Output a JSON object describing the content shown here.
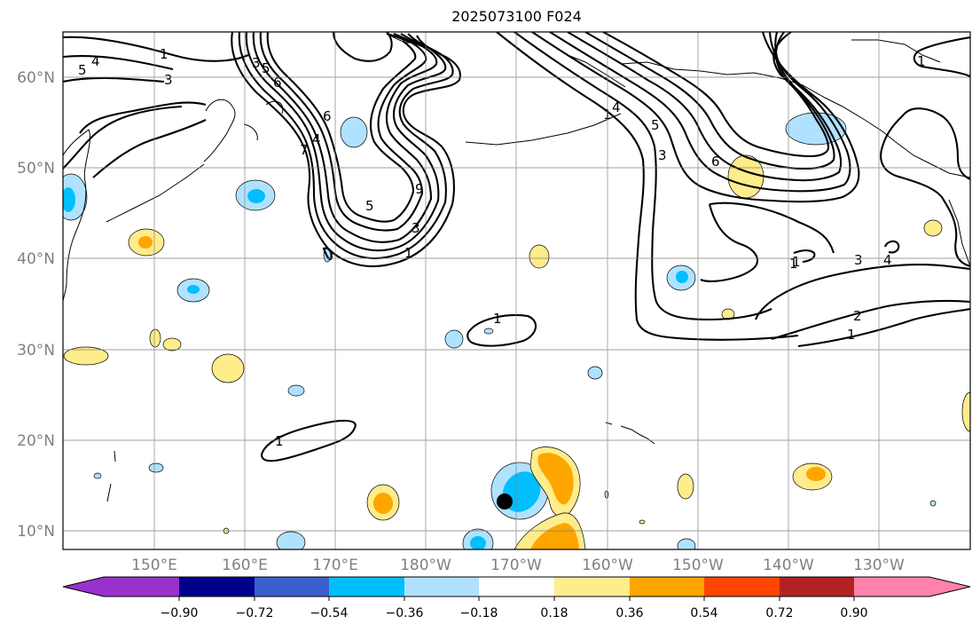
{
  "title": "2025073100 F024",
  "lat_labels": [
    "60°N",
    "50°N",
    "40°N",
    "30°N",
    "20°N",
    "10°N"
  ],
  "lon_labels": [
    "150°E",
    "160°E",
    "170°E",
    "180°W",
    "170°W",
    "160°W",
    "150°W",
    "140°W",
    "130°W"
  ],
  "colorbar": {
    "ticks": [
      "−0.90",
      "−0.72",
      "−0.54",
      "−0.36",
      "−0.18",
      "0.18",
      "0.36",
      "0.54",
      "0.72",
      "0.90"
    ],
    "colors": [
      "#9932cc",
      "#00008b",
      "#3a5fcd",
      "#00bfff",
      "#b0e2ff",
      "#ffffff",
      "#ffec8b",
      "#ffa500",
      "#ff4500",
      "#b22222",
      "#ff82ab"
    ]
  },
  "contour_labels": [
    "1",
    "4",
    "5",
    "3",
    "6",
    "7",
    "4",
    "5",
    "3",
    "1",
    "6",
    "9",
    "5",
    "3",
    "1",
    "1",
    "1",
    "4",
    "5",
    "3",
    "6",
    "1",
    "3",
    "4",
    "2",
    "1",
    "1",
    "1"
  ]
}
